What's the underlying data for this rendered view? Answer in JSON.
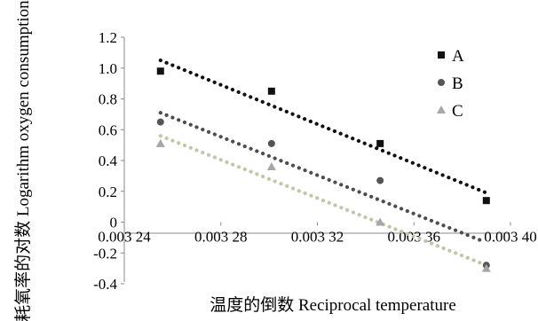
{
  "chart_data": {
    "type": "scatter",
    "title": "",
    "xlabel": "温度的倒数 Reciprocal temperature",
    "ylabel": "耗氧率的对数 Logarithm oxygen consumption rate",
    "xlim": [
      0.00324,
      0.0034
    ],
    "ylim": [
      -0.4,
      1.2
    ],
    "xticks": [
      {
        "value": 0.00324,
        "label": "0.003 24"
      },
      {
        "value": 0.00328,
        "label": "0.003 28"
      },
      {
        "value": 0.00332,
        "label": "0.003 32"
      },
      {
        "value": 0.00336,
        "label": "0.003 36"
      },
      {
        "value": 0.0034,
        "label": "0.003 40"
      }
    ],
    "yticks": [
      {
        "value": -0.4,
        "label": "-0.4"
      },
      {
        "value": -0.2,
        "label": "-0.2"
      },
      {
        "value": 0,
        "label": "0"
      },
      {
        "value": 0.2,
        "label": "0.2"
      },
      {
        "value": 0.4,
        "label": "0.4"
      },
      {
        "value": 0.6,
        "label": "0.6"
      },
      {
        "value": 0.8,
        "label": "0.8"
      },
      {
        "value": 1.0,
        "label": "1.0"
      },
      {
        "value": 1.2,
        "label": "1.2"
      }
    ],
    "grid": false,
    "legend_position": "top-right",
    "series": [
      {
        "name": "A",
        "marker": "square",
        "color": "#111111",
        "trend_color": "#111111",
        "x": [
          0.003255,
          0.003301,
          0.003346,
          0.00339
        ],
        "y": [
          0.98,
          0.85,
          0.51,
          0.14
        ],
        "trend": [
          [
            0.003255,
            1.05
          ],
          [
            0.00339,
            0.19
          ]
        ]
      },
      {
        "name": "B",
        "marker": "circle",
        "color": "#555555",
        "trend_color": "#4d4d4d",
        "x": [
          0.003255,
          0.003301,
          0.003346,
          0.00339
        ],
        "y": [
          0.65,
          0.51,
          0.27,
          -0.28
        ],
        "trend": [
          [
            0.003255,
            0.71
          ],
          [
            0.003388,
            -0.12
          ]
        ]
      },
      {
        "name": "C",
        "marker": "triangle",
        "color": "#a6a6a6",
        "trend_color": "#c4c4a8",
        "x": [
          0.003255,
          0.003301,
          0.003346,
          0.00339
        ],
        "y": [
          0.51,
          0.36,
          0.0,
          -0.3
        ],
        "trend": [
          [
            0.003255,
            0.56
          ],
          [
            0.00339,
            -0.28
          ]
        ]
      }
    ]
  }
}
